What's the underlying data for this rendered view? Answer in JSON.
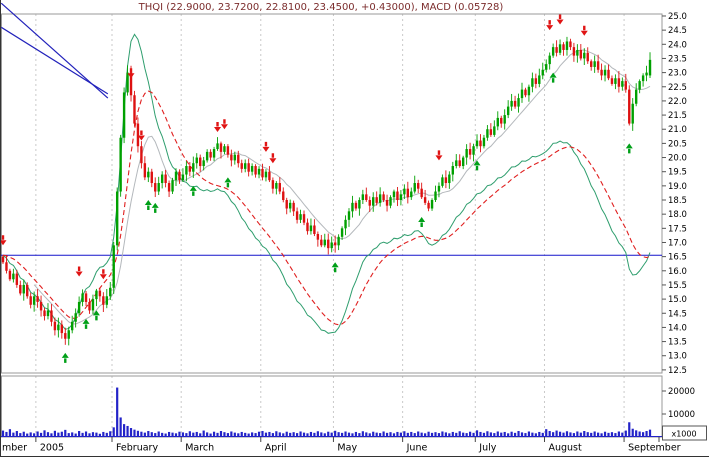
{
  "title": "THQI (22.9000, 23.7200, 22.8100, 23.4500, +0.43000), MACD (0.05728)",
  "colors": {
    "up": "#00a000",
    "down": "#dd1111",
    "macd": "#2f9e6e",
    "signal": "#e02020",
    "sma": "#b4b8bc",
    "volume": "#2323c8",
    "zero_line": "#1515cc",
    "trendline": "#2222bb",
    "grid": "#c9c9c9",
    "axis_text": "#000000",
    "title": "#7b2c2c",
    "frame": "#9a9a9a"
  },
  "axes": {
    "price_ticks": [
      "25.0",
      "24.5",
      "24.0",
      "23.5",
      "23.0",
      "22.5",
      "22.0",
      "21.5",
      "21.0",
      "20.5",
      "20.0",
      "19.5",
      "19.0",
      "18.5",
      "18.0",
      "17.5",
      "17.0",
      "16.5",
      "16.0",
      "15.5",
      "15.0",
      "14.5",
      "14.0",
      "13.5",
      "13.0",
      "12.5"
    ],
    "volume_ticks": [
      "20000",
      "10000"
    ],
    "volume_unit": "x1000",
    "months": [
      {
        "label": "mber",
        "start": 0
      },
      {
        "label": "2005",
        "start": 10
      },
      {
        "label": "February",
        "start": 32
      },
      {
        "label": "March",
        "start": 52
      },
      {
        "label": "April",
        "start": 75
      },
      {
        "label": "May",
        "start": 96
      },
      {
        "label": "June",
        "start": 116
      },
      {
        "label": "July",
        "start": 137
      },
      {
        "label": "August",
        "start": 157
      },
      {
        "label": "September",
        "start": 180
      }
    ]
  },
  "chart_data": {
    "type": "candlestick",
    "symbol": "THQI",
    "indicator": "MACD",
    "last_quote": {
      "open": 22.9,
      "high": 23.72,
      "low": 22.81,
      "close": 23.45,
      "change": 0.43,
      "macd": 0.05728
    },
    "zero_line_price": 16.55,
    "price_range": [
      12.5,
      25.0
    ],
    "closes": [
      16.3,
      16.0,
      15.7,
      15.9,
      15.5,
      15.2,
      15.5,
      15.1,
      14.8,
      15.1,
      14.9,
      14.6,
      14.4,
      14.6,
      14.2,
      13.9,
      14.1,
      13.8,
      13.6,
      13.9,
      14.2,
      14.5,
      14.9,
      15.2,
      14.9,
      14.6,
      15.0,
      15.3,
      15.1,
      14.8,
      15.1,
      15.4,
      16.9,
      18.8,
      20.7,
      22.3,
      23.0,
      22.2,
      21.2,
      20.4,
      19.8,
      19.3,
      19.5,
      19.1,
      18.8,
      19.1,
      19.4,
      19.1,
      18.8,
      19.2,
      19.5,
      19.2,
      19.4,
      19.7,
      19.5,
      19.8,
      20.0,
      19.7,
      19.9,
      20.2,
      20.0,
      20.3,
      20.5,
      20.2,
      20.4,
      20.1,
      19.9,
      20.1,
      19.8,
      19.6,
      19.8,
      19.5,
      19.7,
      19.4,
      19.6,
      19.3,
      19.5,
      19.2,
      18.9,
      19.1,
      18.8,
      18.5,
      18.2,
      18.4,
      18.1,
      17.8,
      18.0,
      17.7,
      17.4,
      17.6,
      17.3,
      17.1,
      16.9,
      17.1,
      16.8,
      17.0,
      16.9,
      17.2,
      17.5,
      17.8,
      18.1,
      18.4,
      18.2,
      18.5,
      18.7,
      18.5,
      18.3,
      18.6,
      18.4,
      18.7,
      18.5,
      18.3,
      18.6,
      18.8,
      18.5,
      18.7,
      18.9,
      18.6,
      18.8,
      19.1,
      18.9,
      18.6,
      18.4,
      18.2,
      18.5,
      18.8,
      19.0,
      19.3,
      19.1,
      19.4,
      19.7,
      19.9,
      19.7,
      20.0,
      20.3,
      20.1,
      20.4,
      20.6,
      20.4,
      20.7,
      21.0,
      20.8,
      21.1,
      21.4,
      21.2,
      21.5,
      21.8,
      22.0,
      21.8,
      22.1,
      22.4,
      22.2,
      22.5,
      22.8,
      22.6,
      22.9,
      23.1,
      23.3,
      23.6,
      23.9,
      23.7,
      24.0,
      23.8,
      24.1,
      23.9,
      23.6,
      23.8,
      23.5,
      23.7,
      23.4,
      23.2,
      23.4,
      23.1,
      22.9,
      23.1,
      22.8,
      22.6,
      22.8,
      22.5,
      22.7,
      22.4,
      21.2,
      21.9,
      22.4,
      22.7,
      22.9,
      23.0,
      23.45
    ],
    "volumes": [
      2800,
      2200,
      3400,
      1900,
      2600,
      1700,
      2300,
      1500,
      2000,
      1600,
      2400,
      1800,
      2900,
      2100,
      1600,
      2700,
      1900,
      2300,
      3100,
      1700,
      2000,
      1500,
      2600,
      1800,
      2400,
      1600,
      2100,
      1900,
      1400,
      2200,
      1800,
      2500,
      4200,
      21500,
      8500,
      5600,
      4800,
      3900,
      3200,
      2700,
      2300,
      1900,
      2600,
      2100,
      1700,
      2400,
      1800,
      1500,
      2200,
      1900,
      1600,
      2300,
      2000,
      1700,
      2500,
      1900,
      2200,
      1600,
      2800,
      2000,
      1500,
      2300,
      1800,
      2600,
      2100,
      1700,
      2400,
      1900,
      1600,
      2200,
      1800,
      1500,
      2000,
      1700,
      2300,
      2600,
      1900,
      2200,
      1700,
      2500,
      2000,
      1600,
      2300,
      1800,
      2100,
      1700,
      2400,
      1900,
      1600,
      2200,
      1800,
      2500,
      2000,
      1600,
      2300,
      1900,
      2700,
      2100,
      1800,
      2400,
      1900,
      1600,
      2200,
      1700,
      2500,
      2000,
      1600,
      2300,
      1900,
      1700,
      2400,
      1800,
      2100,
      1600,
      2200,
      1900,
      2500,
      1800,
      2200,
      1700,
      2400,
      1900,
      1600,
      2300,
      1800,
      2100,
      1700,
      2400,
      2000,
      1600,
      2200,
      1800,
      2500,
      1900,
      1700,
      2300,
      1800,
      2900,
      2200,
      1800,
      2500,
      2000,
      1700,
      2400,
      1900,
      2200,
      1600,
      2300,
      1800,
      2600,
      2000,
      1700,
      2400,
      1900,
      1600,
      2200,
      1800,
      3400,
      2600,
      2100,
      2800,
      2300,
      1900,
      2500,
      2000,
      1700,
      2400,
      1900,
      2600,
      2100,
      1800,
      2400,
      1900,
      1600,
      2300,
      1800,
      2100,
      1700,
      2400,
      1900,
      2800,
      6400,
      3600,
      2900,
      2400,
      2100,
      2600,
      3200
    ],
    "signals": {
      "buy": [
        [
          18,
          13.1
        ],
        [
          24,
          14.3
        ],
        [
          27,
          14.6
        ],
        [
          42,
          18.5
        ],
        [
          44,
          18.4
        ],
        [
          55,
          19.0
        ],
        [
          65,
          19.3
        ],
        [
          96,
          16.3
        ],
        [
          121,
          17.9
        ],
        [
          137,
          19.9
        ],
        [
          159,
          23.0
        ],
        [
          181,
          20.5
        ]
      ],
      "sell": [
        [
          0,
          16.9
        ],
        [
          22,
          15.8
        ],
        [
          29,
          15.7
        ],
        [
          37,
          22.8
        ],
        [
          40,
          20.6
        ],
        [
          62,
          20.9
        ],
        [
          64,
          21.0
        ],
        [
          76,
          20.2
        ],
        [
          78,
          19.8
        ],
        [
          126,
          19.9
        ],
        [
          158,
          24.5
        ],
        [
          161,
          24.7
        ],
        [
          168,
          24.3
        ]
      ]
    },
    "trendlines": [
      {
        "i1": -0.5,
        "p1": 25.45,
        "i2": 30.3,
        "p2": 22.1
      },
      {
        "i1": -0.5,
        "p1": 24.6,
        "i2": 30.3,
        "p2": 22.25
      }
    ],
    "overlays": [
      "MACD (scaled, zero at horizontal line)",
      "MACD signal (dashed)",
      "moving average"
    ]
  }
}
